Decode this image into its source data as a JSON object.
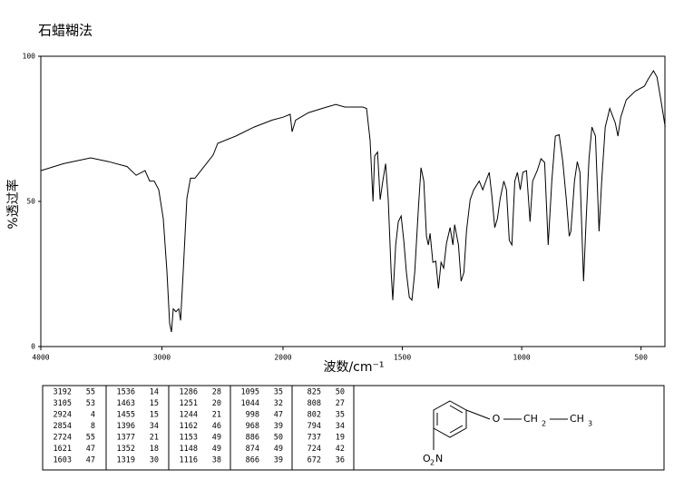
{
  "chart_data": {
    "type": "line",
    "title": "石蜡糊法",
    "xlabel": "波数/cm⁻¹",
    "ylabel": "%透过率",
    "xlim": [
      4000,
      400
    ],
    "x_break": 2000,
    "xticks": [
      4000,
      3000,
      2000,
      1500,
      1000,
      500
    ],
    "ylim": [
      0,
      100
    ],
    "yticks": [
      0,
      50,
      100
    ],
    "color": "#000000",
    "x": [
      4000,
      3813,
      3588,
      3438,
      3288,
      3213,
      3139,
      3101,
      3064,
      3026,
      2989,
      2959,
      2936,
      2921,
      2906,
      2884,
      2861,
      2846,
      2824,
      2794,
      2764,
      2727,
      2652,
      2577,
      2539,
      2390,
      2240,
      2090,
      2000,
      1970,
      1962,
      1947,
      1893,
      1817,
      1779,
      1741,
      1665,
      1650,
      1635,
      1623,
      1616,
      1604,
      1593,
      1582,
      1570,
      1559,
      1547,
      1540,
      1528,
      1517,
      1505,
      1494,
      1483,
      1471,
      1460,
      1448,
      1433,
      1422,
      1410,
      1399,
      1391,
      1384,
      1372,
      1360,
      1349,
      1338,
      1327,
      1315,
      1300,
      1288,
      1281,
      1265,
      1254,
      1242,
      1231,
      1216,
      1201,
      1178,
      1163,
      1148,
      1136,
      1125,
      1113,
      1102,
      1090,
      1075,
      1064,
      1052,
      1041,
      1029,
      1018,
      1006,
      995,
      980,
      965,
      954,
      935,
      919,
      904,
      889,
      874,
      859,
      843,
      828,
      813,
      801,
      794,
      779,
      767,
      756,
      741,
      730,
      718,
      706,
      691,
      676,
      665,
      650,
      631,
      608,
      597,
      585,
      562,
      524,
      486,
      471,
      448,
      433,
      417,
      399
    ],
    "values": [
      60.6,
      63,
      65,
      63.7,
      62,
      59,
      60.6,
      57,
      57,
      54,
      44,
      26,
      8,
      5,
      13,
      12,
      13,
      9,
      26,
      51,
      58,
      58,
      62,
      66,
      70,
      72.5,
      75.6,
      78,
      79,
      80,
      74,
      78,
      80.6,
      82.5,
      83.4,
      82.5,
      82.5,
      82,
      71,
      50,
      65.6,
      67,
      50.6,
      57,
      63,
      50.6,
      25.6,
      16,
      35,
      43,
      45,
      36.6,
      25.6,
      17,
      16,
      25.6,
      47.5,
      61.6,
      57,
      38,
      35,
      39,
      29,
      29.4,
      20,
      29,
      27,
      35.6,
      41,
      35,
      42,
      35,
      22.5,
      25.6,
      40,
      50.6,
      54,
      57,
      54,
      57.5,
      60,
      52,
      41,
      44,
      51,
      57,
      54,
      36.6,
      35,
      57,
      60,
      54,
      60,
      60.6,
      43,
      57,
      60.6,
      64.7,
      63.4,
      35,
      57,
      72.5,
      73,
      63.7,
      50.6,
      38,
      39.7,
      57,
      63.7,
      60,
      22.5,
      44,
      64.7,
      75.6,
      72.5,
      39.7,
      57,
      75.6,
      82,
      77,
      72.5,
      79,
      85,
      88,
      89.7,
      92,
      95,
      92.8,
      85,
      75.6
    ]
  },
  "peak_table": [
    [
      [
        3192,
        55
      ],
      [
        3105,
        53
      ],
      [
        2924,
        4
      ],
      [
        2854,
        8
      ],
      [
        2724,
        55
      ],
      [
        1621,
        47
      ],
      [
        1603,
        47
      ]
    ],
    [
      [
        1536,
        14
      ],
      [
        1463,
        15
      ],
      [
        1455,
        15
      ],
      [
        1396,
        34
      ],
      [
        1377,
        21
      ],
      [
        1352,
        18
      ],
      [
        1319,
        30
      ]
    ],
    [
      [
        1286,
        28
      ],
      [
        1251,
        20
      ],
      [
        1244,
        21
      ],
      [
        1162,
        46
      ],
      [
        1153,
        49
      ],
      [
        1148,
        49
      ],
      [
        1116,
        38
      ]
    ],
    [
      [
        1095,
        35
      ],
      [
        1044,
        32
      ],
      [
        998,
        47
      ],
      [
        968,
        39
      ],
      [
        886,
        50
      ],
      [
        874,
        49
      ],
      [
        866,
        39
      ]
    ],
    [
      [
        825,
        50
      ],
      [
        808,
        27
      ],
      [
        802,
        35
      ],
      [
        794,
        34
      ],
      [
        737,
        19
      ],
      [
        724,
        42
      ],
      [
        672,
        36
      ]
    ]
  ],
  "structure": {
    "ether_o": "O",
    "ch2": "CH",
    "ch2_sub": "2",
    "ch3": "CH",
    "ch3_sub": "3",
    "nitro_o": "O",
    "nitro_sub": "2",
    "nitro_n": "N"
  }
}
